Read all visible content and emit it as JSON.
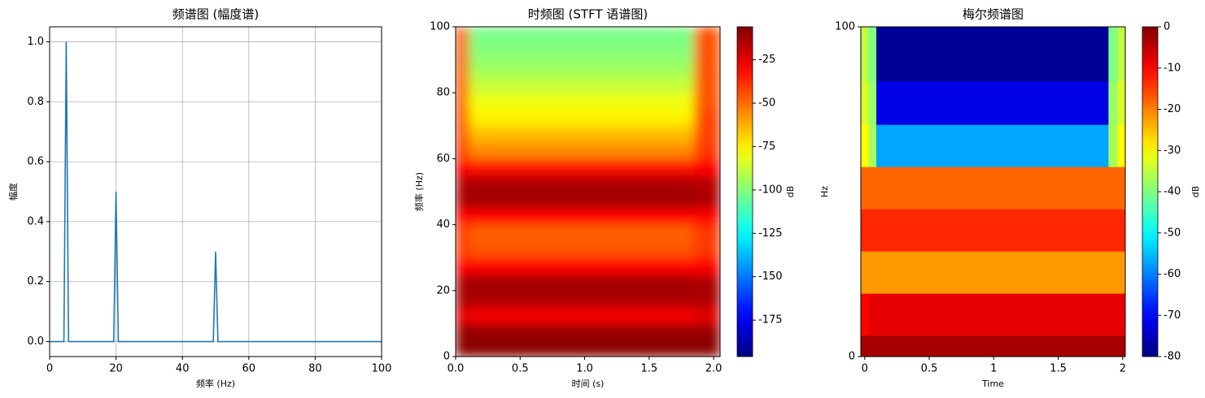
{
  "chart_data": [
    {
      "type": "line",
      "title": "频谱图 (幅度谱)",
      "xlabel": "频率 (Hz)",
      "ylabel": "幅度",
      "color": "#1f77b4",
      "x": [
        0,
        4.3,
        5,
        5.7,
        19.3,
        20,
        20.7,
        49.3,
        50,
        50.7,
        100
      ],
      "values": [
        0,
        0,
        1.0,
        0,
        0,
        0.5,
        0,
        0,
        0.3,
        0,
        0
      ],
      "xlim": [
        0,
        100
      ],
      "xticks": [
        0,
        20,
        40,
        60,
        80,
        100
      ],
      "ylim": [
        -0.05,
        1.05
      ],
      "yticks": [
        {
          "value": 0,
          "label": "0.0"
        },
        0.2,
        0.4,
        0.6,
        0.8,
        {
          "value": 1,
          "label": "1.0"
        }
      ],
      "grid": true
    },
    {
      "type": "heatmap",
      "title": "时频图 (STFT 语谱图)",
      "xlabel": "时间 (s)",
      "ylabel": "频率 (Hz)",
      "colormap": "jet",
      "smooth": true,
      "colorbar_label": "dB",
      "xlim": [
        0,
        2.05
      ],
      "xticks": [
        {
          "value": 0,
          "label": "0.0"
        },
        0.5,
        {
          "value": 1,
          "label": "1.0"
        },
        1.5,
        {
          "value": 2,
          "label": "2.0"
        }
      ],
      "ylim": [
        0,
        100
      ],
      "yticks": [
        0,
        20,
        40,
        60,
        80,
        100
      ],
      "x_bins": [
        0,
        0.1,
        1.85,
        2.05
      ],
      "y_bins": [
        0,
        5,
        10,
        15,
        20,
        25,
        30,
        35,
        40,
        45,
        50,
        55,
        60,
        65,
        70,
        75,
        80,
        85,
        90,
        95,
        100
      ],
      "z": [
        [
          -8,
          -8,
          -8
        ],
        [
          -10,
          -10,
          -10
        ],
        [
          -25,
          -28,
          -25
        ],
        [
          -14,
          -14,
          -14
        ],
        [
          -14,
          -12,
          -14
        ],
        [
          -30,
          -30,
          -30
        ],
        [
          -40,
          -45,
          -40
        ],
        [
          -40,
          -48,
          -40
        ],
        [
          -30,
          -30,
          -30
        ],
        [
          -14,
          -12,
          -14
        ],
        [
          -16,
          -14,
          -16
        ],
        [
          -30,
          -32,
          -30
        ],
        [
          -40,
          -55,
          -40
        ],
        [
          -42,
          -65,
          -42
        ],
        [
          -42,
          -75,
          -42
        ],
        [
          -45,
          -80,
          -45
        ],
        [
          -45,
          -88,
          -45
        ],
        [
          -45,
          -95,
          -45
        ],
        [
          -45,
          -100,
          -45
        ],
        [
          -45,
          -102,
          -45
        ]
      ],
      "clim": [
        -196,
        -6
      ],
      "cticks": [
        -25,
        -50,
        -75,
        -100,
        -125,
        -150,
        -175
      ]
    },
    {
      "type": "heatmap",
      "title": "梅尔频谱图",
      "xlabel": "Time",
      "ylabel": "Hz",
      "colormap": "jet",
      "smooth": false,
      "colorbar_label": "dB",
      "xlim": [
        -0.03,
        2.02
      ],
      "xticks": [
        0,
        0.5,
        1,
        1.5,
        2
      ],
      "ylim": [
        0,
        100
      ],
      "yticks": [
        0,
        100
      ],
      "x_bins": [
        -0.03,
        0.03,
        0.09,
        1.89,
        1.96,
        2.02
      ],
      "y_bins": [
        0,
        6.4,
        19.2,
        32,
        44.8,
        57.6,
        70.4,
        83.5,
        100
      ],
      "z": [
        [
          -3,
          -3,
          -3,
          -3,
          -3
        ],
        [
          -10,
          -8,
          -8,
          -8,
          -8
        ],
        [
          -22,
          -22,
          -22,
          -22,
          -22
        ],
        [
          -13,
          -13,
          -13,
          -13,
          -13
        ],
        [
          -18,
          -18,
          -18,
          -18,
          -18
        ],
        [
          -30,
          -37,
          -57,
          -37,
          -30
        ],
        [
          -33,
          -38,
          -72,
          -38,
          -33
        ],
        [
          -35,
          -40,
          -78,
          -40,
          -35
        ]
      ],
      "clim": [
        -80,
        0
      ],
      "cticks": [
        0,
        -10,
        -20,
        -30,
        -40,
        -50,
        -60,
        -70,
        -80
      ]
    }
  ]
}
